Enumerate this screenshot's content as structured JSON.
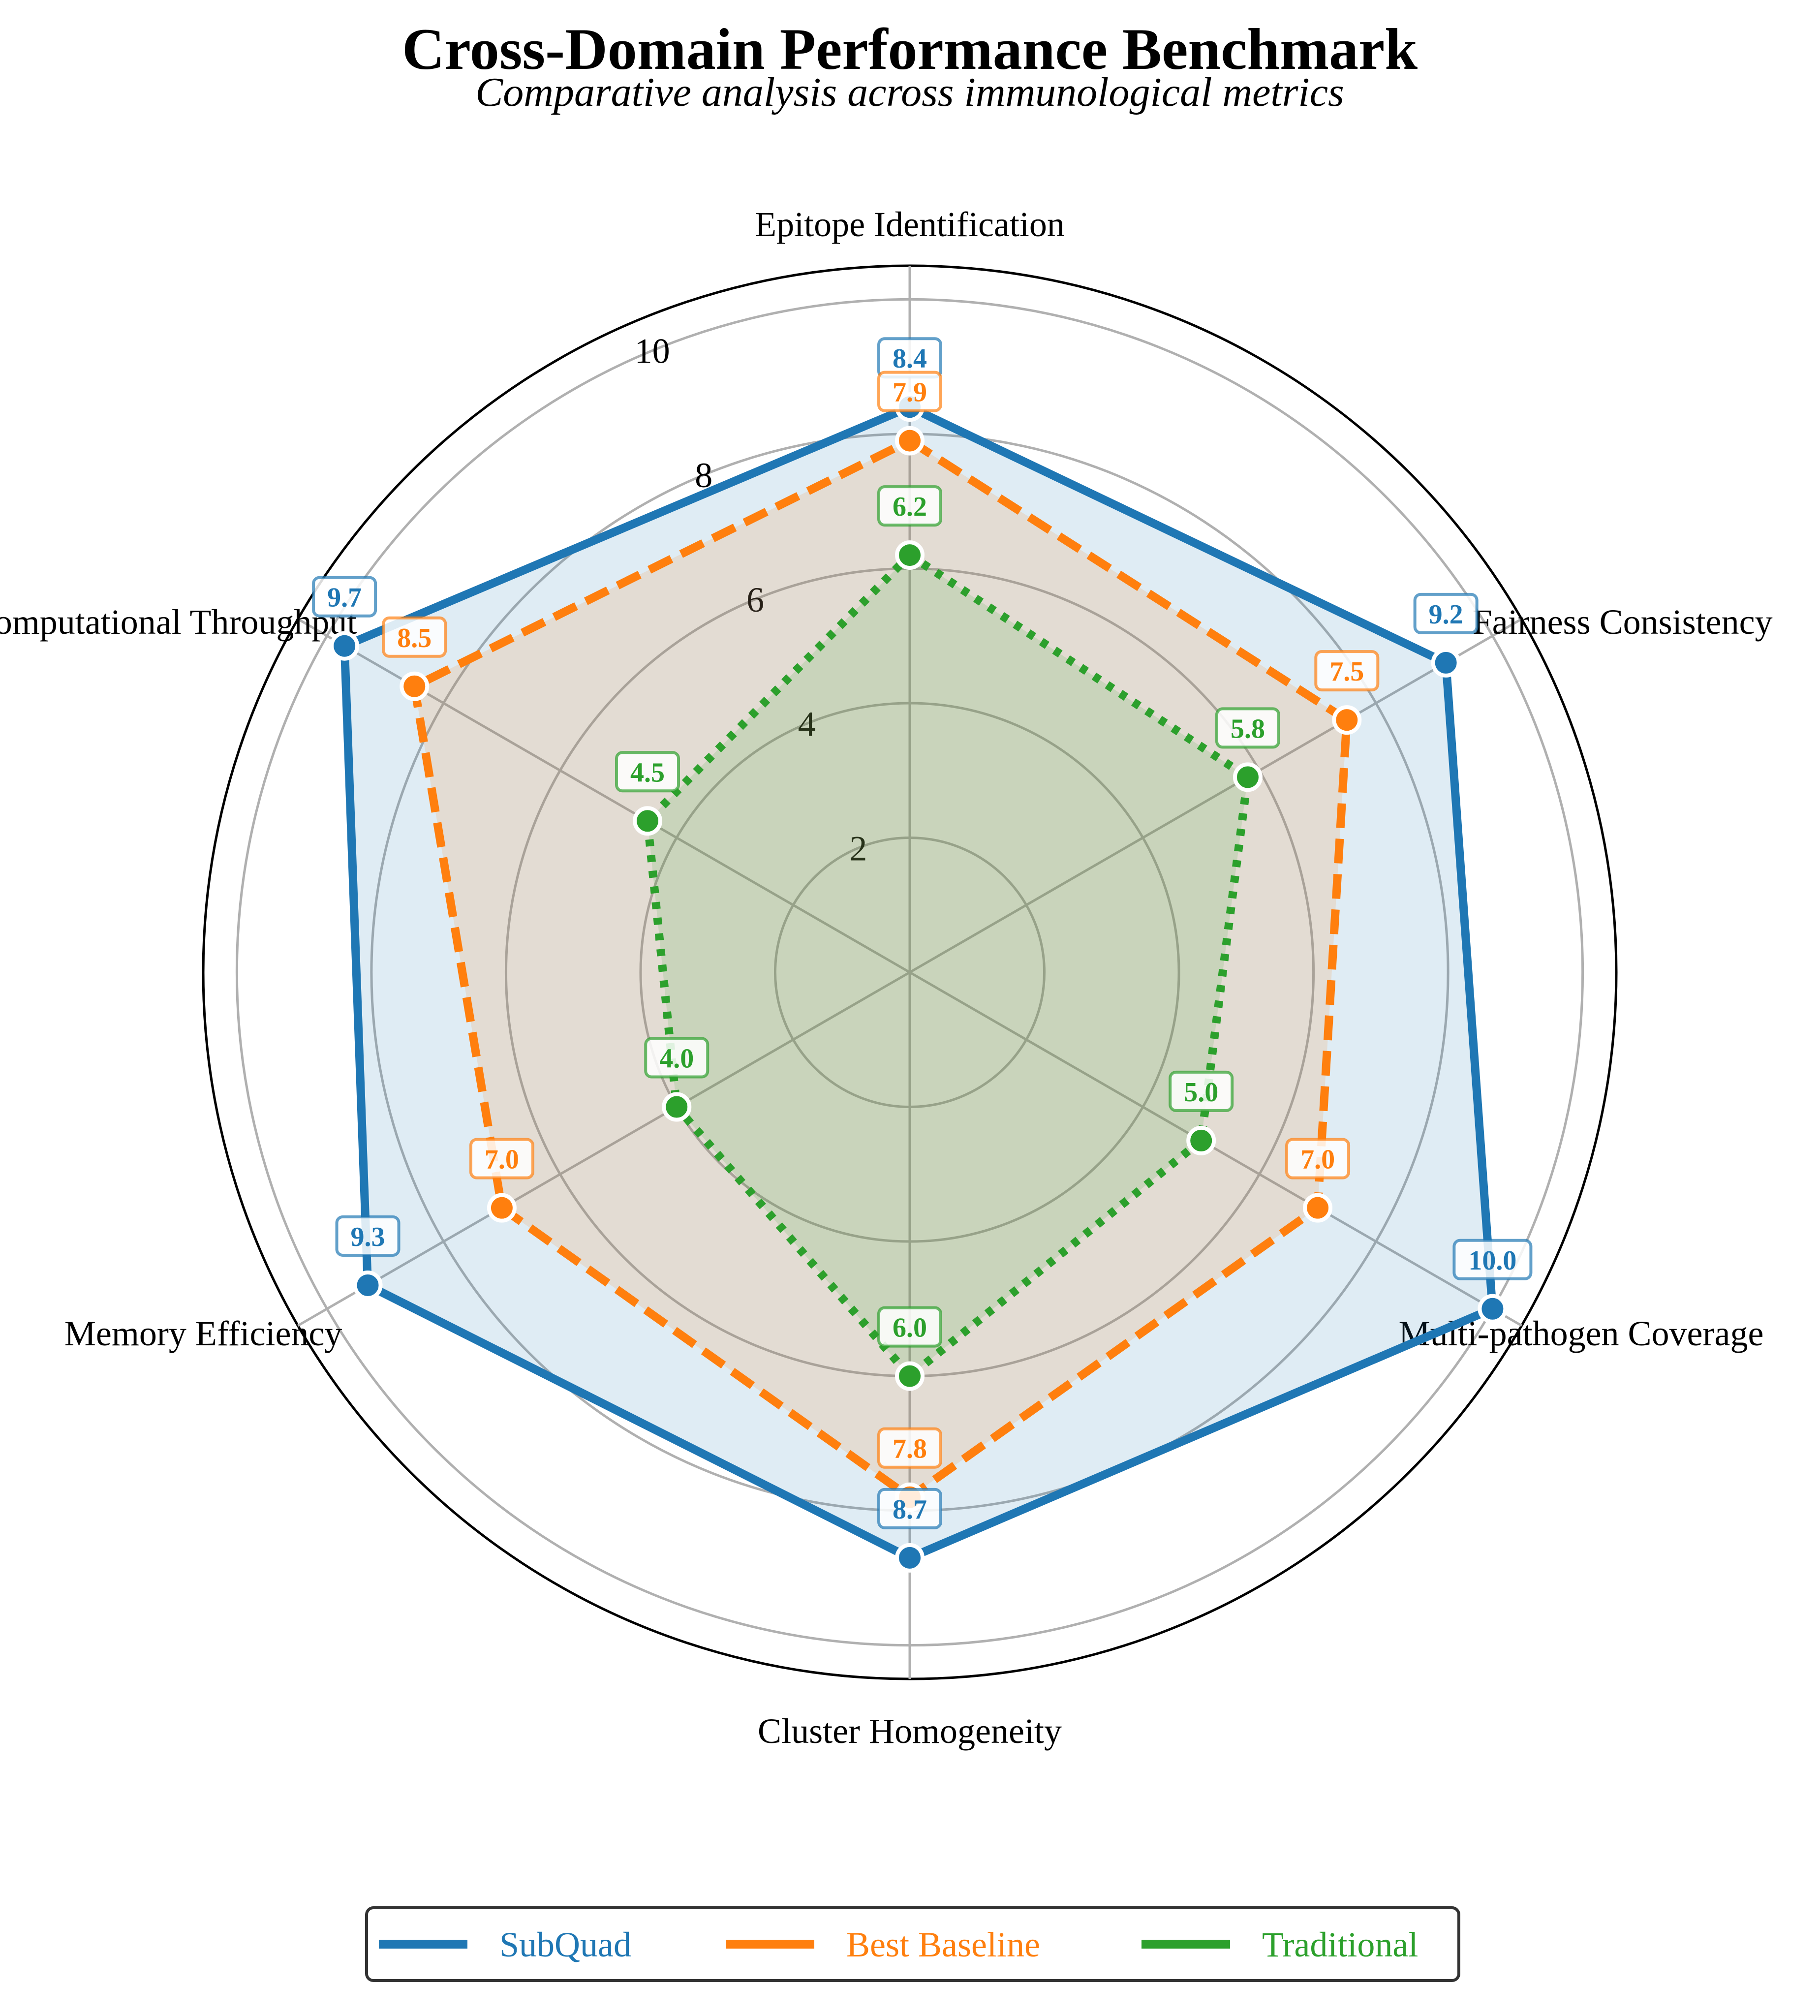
{
  "chart_data": {
    "type": "radar",
    "title": "Cross-Domain Performance Benchmark",
    "subtitle": "Comparative analysis across immunological metrics",
    "categories": [
      "Epitope Identification",
      "Fairness Consistency",
      "Multi-pathogen Coverage",
      "Cluster Homogeneity",
      "Memory Efficiency",
      "Computational Throughput"
    ],
    "rlim": [
      0,
      10.5
    ],
    "rticks": [
      2,
      4,
      6,
      8,
      10
    ],
    "grid": true,
    "legend": "bottom",
    "series": [
      {
        "name": "SubQuad",
        "color": "#1f77b4",
        "line": "solid",
        "values": [
          8.4,
          9.2,
          10.0,
          8.7,
          9.3,
          9.7
        ],
        "labels": [
          "8.4",
          "9.2",
          "10.0",
          "8.7",
          "9.3",
          "9.7"
        ]
      },
      {
        "name": "Best Baseline",
        "color": "#ff7f0e",
        "line": "dashed",
        "values": [
          7.9,
          7.5,
          7.0,
          7.8,
          7.0,
          8.5
        ],
        "labels": [
          "7.9",
          "7.5",
          "7.0",
          "7.8",
          "7.0",
          "8.5"
        ]
      },
      {
        "name": "Traditional",
        "color": "#2ca02c",
        "line": "dotted",
        "values": [
          6.2,
          5.8,
          5.0,
          6.0,
          4.0,
          4.5
        ],
        "labels": [
          "6.2",
          "5.8",
          "5.0",
          "6.0",
          "4.0",
          "4.5"
        ]
      }
    ]
  }
}
